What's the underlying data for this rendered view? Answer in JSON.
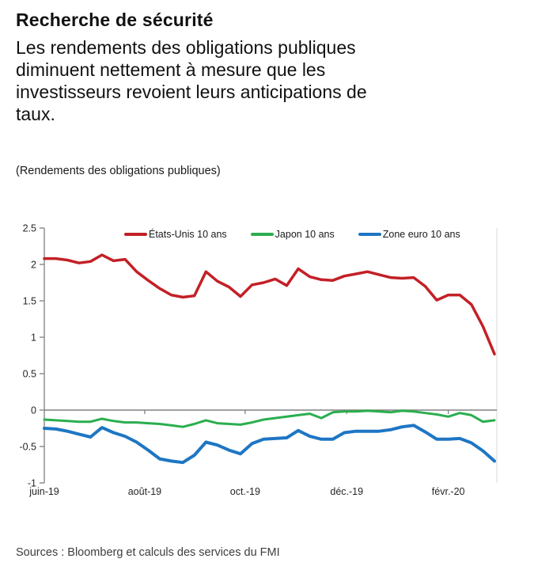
{
  "header": {
    "title": "Recherche de sécurité",
    "subtitle_lines": [
      "Les rendements des obligations publiques",
      "diminuent nettement à mesure que les",
      "investisseurs revoient leurs anticipations de",
      "taux."
    ],
    "caption": "(Rendements des obligations publiques)"
  },
  "chart_data": {
    "type": "line",
    "title": "Rendements des obligations publiques",
    "xlabel": "",
    "ylabel": "",
    "ylim": [
      -1,
      2.5
    ],
    "yticks": [
      2.5,
      2,
      1.5,
      1,
      0.5,
      0,
      -0.5,
      -1
    ],
    "ytick_labels": [
      "2.5",
      "2",
      "1.5",
      "1",
      "0.5",
      "0",
      "-0.5",
      "-1"
    ],
    "n_points": 40,
    "x_ticks": [
      {
        "pos": 0,
        "label": "juin-19"
      },
      {
        "pos": 8.7,
        "label": "août-19"
      },
      {
        "pos": 17.4,
        "label": "oct.-19"
      },
      {
        "pos": 26.2,
        "label": "déc.-19"
      },
      {
        "pos": 35.0,
        "label": "févr.-20"
      }
    ],
    "grid": false,
    "zero_line": true,
    "legend_position": "top",
    "series": [
      {
        "name": "États-Unis 10 ans",
        "color": "#C32026",
        "width": 3.5,
        "values": [
          2.08,
          2.08,
          2.06,
          2.02,
          2.04,
          2.13,
          2.05,
          2.07,
          1.9,
          1.78,
          1.67,
          1.58,
          1.55,
          1.57,
          1.9,
          1.77,
          1.69,
          1.56,
          1.72,
          1.75,
          1.8,
          1.71,
          1.94,
          1.83,
          1.79,
          1.78,
          1.84,
          1.87,
          1.9,
          1.86,
          1.82,
          1.81,
          1.82,
          1.7,
          1.51,
          1.58,
          1.58,
          1.45,
          1.15,
          0.77
        ]
      },
      {
        "name": "Japon 10 ans",
        "color": "#2AAE4F",
        "width": 3,
        "values": [
          -0.13,
          -0.14,
          -0.15,
          -0.16,
          -0.16,
          -0.12,
          -0.15,
          -0.17,
          -0.17,
          -0.18,
          -0.19,
          -0.21,
          -0.23,
          -0.19,
          -0.14,
          -0.18,
          -0.19,
          -0.2,
          -0.17,
          -0.13,
          -0.11,
          -0.09,
          -0.07,
          -0.05,
          -0.11,
          -0.03,
          -0.02,
          -0.02,
          -0.01,
          -0.02,
          -0.03,
          -0.01,
          -0.02,
          -0.04,
          -0.06,
          -0.09,
          -0.04,
          -0.07,
          -0.16,
          -0.14
        ]
      },
      {
        "name": "Zone euro 10 ans",
        "color": "#1E76C4",
        "width": 4,
        "values": [
          -0.25,
          -0.26,
          -0.29,
          -0.33,
          -0.37,
          -0.24,
          -0.31,
          -0.36,
          -0.44,
          -0.55,
          -0.67,
          -0.7,
          -0.72,
          -0.62,
          -0.44,
          -0.48,
          -0.55,
          -0.6,
          -0.46,
          -0.4,
          -0.39,
          -0.38,
          -0.28,
          -0.36,
          -0.4,
          -0.4,
          -0.31,
          -0.29,
          -0.29,
          -0.29,
          -0.27,
          -0.23,
          -0.21,
          -0.3,
          -0.4,
          -0.4,
          -0.39,
          -0.45,
          -0.56,
          -0.7
        ]
      }
    ]
  },
  "source": "Sources : Bloomberg et calculs des services du FMI",
  "colors": {
    "axis": "#808080",
    "tick_text": "#262626",
    "right_border": "#D8D8D8"
  }
}
